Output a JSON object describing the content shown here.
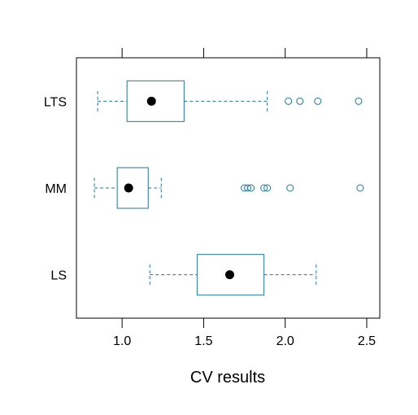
{
  "chart_data": {
    "type": "boxplot",
    "orientation": "horizontal",
    "xlabel": "CV results",
    "xlim": [
      0.72,
      2.58
    ],
    "x_ticks": [
      1.0,
      1.5,
      2.0,
      2.5
    ],
    "x_tick_labels": [
      "1.0",
      "1.5",
      "2.0",
      "2.5"
    ],
    "categories": [
      "LS",
      "MM",
      "LTS"
    ],
    "series": [
      {
        "name": "LTS",
        "whisker_low": 0.85,
        "q1": 1.03,
        "median": 1.18,
        "q3": 1.38,
        "whisker_high": 1.89,
        "outliers": [
          2.02,
          2.09,
          2.2,
          2.45
        ]
      },
      {
        "name": "MM",
        "whisker_low": 0.83,
        "q1": 0.97,
        "median": 1.04,
        "q3": 1.16,
        "whisker_high": 1.24,
        "outliers": [
          1.75,
          1.77,
          1.79,
          1.87,
          1.89,
          2.03,
          2.46
        ]
      },
      {
        "name": "LS",
        "whisker_low": 1.17,
        "q1": 1.46,
        "median": 1.66,
        "q3": 1.87,
        "whisker_high": 2.19,
        "outliers": []
      }
    ],
    "colors": {
      "box": "#1f77a4",
      "median_dot": "#000000",
      "frame": "#000000"
    },
    "grid": false,
    "legend": "none"
  }
}
